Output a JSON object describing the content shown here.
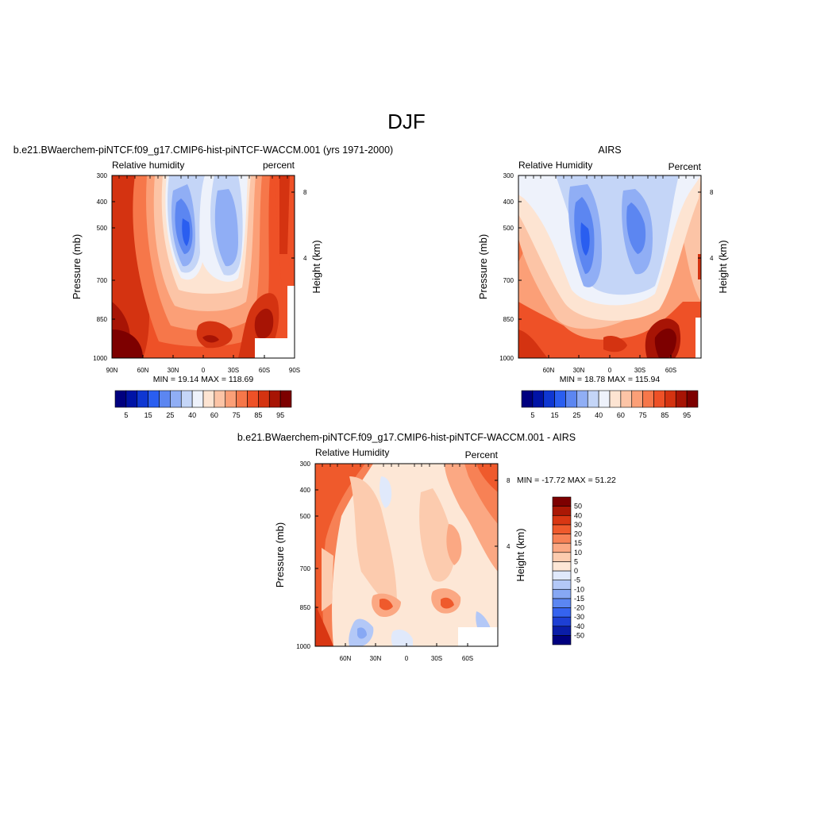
{
  "figure": {
    "title": "DJF"
  },
  "panels": [
    {
      "id": "model",
      "title": "b.e21.BWaerchem-piNTCF.f09_g17.CMIP6-hist-piNTCF-WACCM.001 (yrs 1971-2000)",
      "left_label": "Relative humidity",
      "right_label": "percent",
      "ylabel": "Pressure (mb)",
      "ylabel_right": "Height (km)",
      "stats": "MIN =  19.14  MAX = 118.69"
    },
    {
      "id": "obs",
      "title": "AIRS",
      "left_label": "Relative Humidity",
      "right_label": "Percent",
      "ylabel": "Pressure (mb)",
      "ylabel_right": "Height (km)",
      "stats": "MIN =  18.78  MAX = 115.94"
    },
    {
      "id": "diff",
      "title": "b.e21.BWaerchem-piNTCF.f09_g17.CMIP6-hist-piNTCF-WACCM.001 - AIRS",
      "left_label": "Relative Humidity",
      "right_label": "Percent",
      "ylabel": "Pressure (mb)",
      "ylabel_right": "Height (km)",
      "stats": "MIN = -17.72  MAX =  51.22"
    }
  ],
  "chart_data": [
    {
      "type": "heatmap",
      "title": "b.e21.BWaerchem-piNTCF.f09_g17.CMIP6-hist-piNTCF-WACCM.001 (yrs 1971-2000)",
      "subtitle_left": "Relative humidity",
      "subtitle_right": "percent",
      "xlabel": "",
      "ylabel": "Pressure (mb)",
      "ylabel_right": "Height (km)",
      "x_ticks": [
        "90N",
        "60N",
        "30N",
        "0",
        "30S",
        "60S",
        "90S"
      ],
      "y_ticks": [
        300,
        400,
        500,
        700,
        850,
        1000
      ],
      "y_right_ticks": [
        8,
        4
      ],
      "ylim": [
        1000,
        300
      ],
      "y_scale": "log",
      "levels": [
        5,
        15,
        25,
        40,
        60,
        75,
        85,
        95
      ],
      "colorbar_orientation": "horizontal",
      "min": 19.14,
      "max": 118.69
    },
    {
      "type": "heatmap",
      "title": "AIRS",
      "subtitle_left": "Relative Humidity",
      "subtitle_right": "Percent",
      "xlabel": "",
      "ylabel": "Pressure (mb)",
      "ylabel_right": "Height (km)",
      "x_ticks": [
        "60N",
        "30N",
        "0",
        "30S",
        "60S"
      ],
      "y_ticks": [
        300,
        400,
        500,
        700,
        850,
        1000
      ],
      "y_right_ticks": [
        8,
        4
      ],
      "ylim": [
        1000,
        300
      ],
      "y_scale": "log",
      "levels": [
        5,
        15,
        25,
        40,
        60,
        75,
        85,
        95
      ],
      "colorbar_orientation": "horizontal",
      "min": 18.78,
      "max": 115.94
    },
    {
      "type": "heatmap",
      "title": "b.e21.BWaerchem-piNTCF.f09_g17.CMIP6-hist-piNTCF-WACCM.001 - AIRS",
      "subtitle_left": "Relative Humidity",
      "subtitle_right": "Percent",
      "xlabel": "",
      "ylabel": "Pressure (mb)",
      "ylabel_right": "Height (km)",
      "x_ticks": [
        "60N",
        "30N",
        "0",
        "30S",
        "60S"
      ],
      "y_ticks": [
        300,
        400,
        500,
        700,
        850,
        1000
      ],
      "y_right_ticks": [
        8,
        4
      ],
      "ylim": [
        1000,
        300
      ],
      "y_scale": "log",
      "levels": [
        -50,
        -40,
        -30,
        -20,
        -15,
        -10,
        -5,
        0,
        5,
        10,
        15,
        20,
        30,
        40,
        50
      ],
      "colorbar_orientation": "vertical",
      "min": -17.72,
      "max": 51.22
    }
  ],
  "colors": {
    "abs_palette": [
      "#00007f",
      "#0013a6",
      "#0f37d2",
      "#2a5ef0",
      "#5c86f1",
      "#90aef5",
      "#c4d5f7",
      "#eef2fb",
      "#fde4d2",
      "#fcc4a6",
      "#fb9f77",
      "#f6774a",
      "#ee5127",
      "#d43311",
      "#a71405",
      "#7d0000"
    ],
    "diff_palette": [
      "#00007f",
      "#0a1da8",
      "#1d3fd4",
      "#3563ef",
      "#5b86f2",
      "#87a8f4",
      "#b3c8f7",
      "#e0e9fb",
      "#fde7d6",
      "#fccbae",
      "#fba883",
      "#f78155",
      "#ef5a2c",
      "#d93713",
      "#ab1805",
      "#7d0000"
    ]
  }
}
